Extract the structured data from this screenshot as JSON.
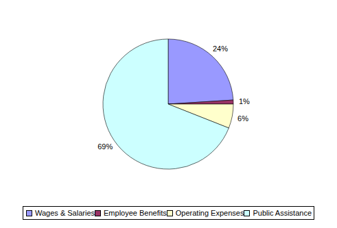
{
  "chart_data": {
    "type": "pie",
    "categories": [
      "Wages & Salaries",
      "Employee Benefits",
      "Operating Expenses",
      "Public Assistance"
    ],
    "values": [
      24,
      1,
      6,
      69
    ],
    "value_labels": [
      "24%",
      "1%",
      "6%",
      "69%"
    ],
    "data_labels": true,
    "colors": [
      "#9999ff",
      "#993366",
      "#ffffcc",
      "#ccffff"
    ],
    "legend": "bottom"
  }
}
